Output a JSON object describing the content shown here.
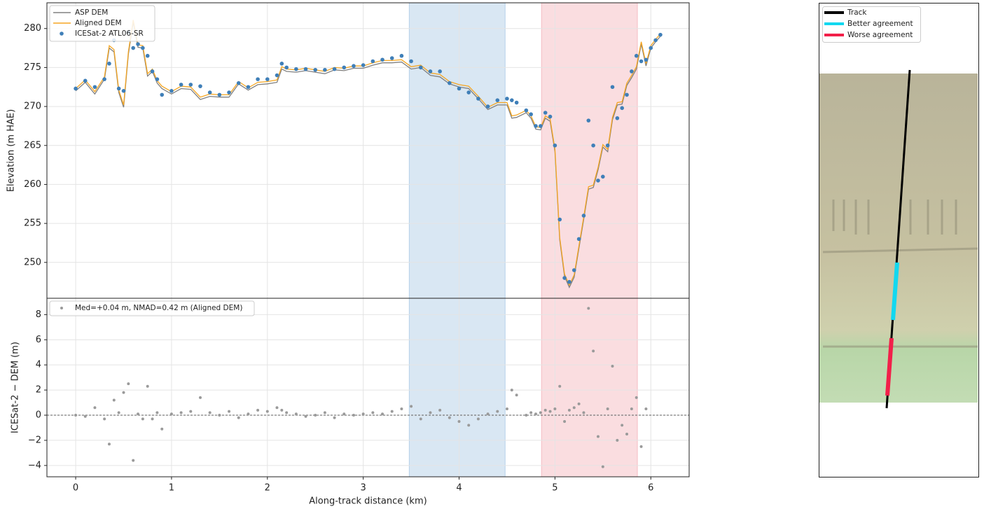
{
  "chart_data": [
    {
      "type": "line",
      "ylabel": "Elevation (m HAE)",
      "x": [
        0,
        0.1,
        0.2,
        0.3,
        0.35,
        0.4,
        0.45,
        0.5,
        0.55,
        0.6,
        0.65,
        0.7,
        0.75,
        0.8,
        0.85,
        0.9,
        1.0,
        1.1,
        1.2,
        1.3,
        1.4,
        1.5,
        1.6,
        1.7,
        1.8,
        1.9,
        2.0,
        2.1,
        2.15,
        2.2,
        2.3,
        2.4,
        2.5,
        2.6,
        2.7,
        2.8,
        2.9,
        3.0,
        3.1,
        3.2,
        3.3,
        3.4,
        3.5,
        3.6,
        3.7,
        3.8,
        3.9,
        4.0,
        4.1,
        4.2,
        4.3,
        4.4,
        4.5,
        4.55,
        4.6,
        4.7,
        4.75,
        4.8,
        4.85,
        4.9,
        4.95,
        5.0,
        5.05,
        5.1,
        5.15,
        5.2,
        5.25,
        5.3,
        5.35,
        5.4,
        5.45,
        5.5,
        5.55,
        5.6,
        5.65,
        5.7,
        5.75,
        5.8,
        5.85,
        5.9,
        5.95,
        6.0,
        6.05,
        6.1
      ],
      "series": [
        {
          "name": "ASP DEM",
          "color": "#808080",
          "mark": "line",
          "values": [
            272.0,
            273.1,
            271.6,
            273.5,
            277.5,
            277.0,
            271.8,
            269.9,
            276.7,
            280.8,
            277.6,
            277.5,
            273.9,
            274.5,
            273.0,
            272.3,
            271.6,
            272.3,
            272.2,
            270.9,
            271.3,
            271.2,
            271.2,
            272.9,
            272.1,
            272.8,
            272.9,
            273.1,
            274.8,
            274.5,
            274.4,
            274.6,
            274.4,
            274.2,
            274.7,
            274.6,
            274.9,
            274.9,
            275.3,
            275.6,
            275.6,
            275.7,
            274.8,
            275.0,
            274.0,
            273.8,
            272.9,
            272.5,
            272.3,
            271.0,
            269.6,
            270.2,
            270.2,
            268.5,
            268.6,
            269.2,
            268.5,
            267.1,
            267.0,
            268.5,
            268.1,
            264.2,
            252.9,
            248.2,
            246.8,
            248.1,
            251.8,
            255.5,
            259.4,
            259.6,
            261.9,
            264.8,
            264.2,
            268.3,
            270.2,
            270.3,
            272.7,
            273.7,
            274.8,
            278.0,
            275.2,
            277.5,
            278.3,
            279.0
          ]
        },
        {
          "name": "Aligned DEM",
          "color": "#f5a623",
          "mark": "line",
          "values": [
            272.3,
            273.4,
            271.9,
            273.8,
            277.8,
            277.3,
            272.1,
            270.2,
            277.0,
            281.1,
            277.9,
            277.8,
            274.2,
            274.8,
            273.3,
            272.6,
            271.9,
            272.6,
            272.5,
            271.2,
            271.6,
            271.5,
            271.5,
            273.2,
            272.4,
            273.1,
            273.2,
            273.4,
            275.1,
            274.8,
            274.7,
            274.9,
            274.7,
            274.5,
            275.0,
            274.9,
            275.2,
            275.2,
            275.6,
            275.9,
            275.9,
            276.0,
            275.1,
            275.3,
            274.3,
            274.1,
            273.2,
            272.8,
            272.6,
            271.3,
            269.9,
            270.5,
            270.5,
            268.8,
            268.9,
            269.5,
            268.8,
            267.4,
            267.3,
            268.8,
            268.4,
            264.5,
            253.2,
            248.5,
            247.1,
            248.4,
            252.1,
            255.8,
            259.7,
            259.9,
            262.2,
            265.1,
            264.5,
            268.6,
            270.5,
            270.6,
            273.0,
            274.0,
            275.1,
            278.3,
            275.5,
            277.8,
            278.6,
            279.3
          ]
        },
        {
          "name": "ICESat-2 ATL06-SR",
          "color": "#3f7fb8",
          "mark": "point",
          "values": [
            272.3,
            273.3,
            272.5,
            273.5,
            275.5,
            278.5,
            272.3,
            272.0,
            279.5,
            277.5,
            278.0,
            277.5,
            276.5,
            274.5,
            273.5,
            271.5,
            272.0,
            272.8,
            272.8,
            272.6,
            271.8,
            271.5,
            271.8,
            273.0,
            272.5,
            273.5,
            273.5,
            274.0,
            275.5,
            275.0,
            274.8,
            274.8,
            274.7,
            274.7,
            274.8,
            275.0,
            275.2,
            275.3,
            275.8,
            276.0,
            276.2,
            276.5,
            275.8,
            275.0,
            274.5,
            274.5,
            273.0,
            272.3,
            271.8,
            271.0,
            270.0,
            270.8,
            271.0,
            270.8,
            270.5,
            269.5,
            269.0,
            267.5,
            267.5,
            269.2,
            268.7,
            265.0,
            255.5,
            248.0,
            247.5,
            249.0,
            253.0,
            256.0,
            268.2,
            265.0,
            260.5,
            261.0,
            265.0,
            272.5,
            268.5,
            269.8,
            271.5,
            274.5,
            276.5,
            275.8,
            276.0,
            277.5,
            278.5,
            279.2
          ]
        }
      ],
      "xlim": [
        -0.3,
        6.4
      ],
      "xticks": [
        0,
        1,
        2,
        3,
        4,
        5,
        6
      ],
      "show_xtick_labels": false,
      "ylim": [
        245.4,
        283.3
      ],
      "yticks": [
        250,
        255,
        260,
        265,
        270,
        275,
        280
      ],
      "spans": [
        {
          "x": [
            3.48,
            4.48
          ],
          "color": "#9fc3e2"
        },
        {
          "x": [
            4.86,
            5.86
          ],
          "color": "#f2aab1"
        }
      ],
      "grid": true,
      "legend": "upper left"
    },
    {
      "type": "scatter",
      "xlabel": "Along-track distance (km)",
      "ylabel": "ICESat-2 − DEM (m)",
      "x": [
        0,
        0.1,
        0.2,
        0.3,
        0.35,
        0.4,
        0.45,
        0.5,
        0.55,
        0.6,
        0.65,
        0.7,
        0.75,
        0.8,
        0.85,
        0.9,
        1.0,
        1.1,
        1.2,
        1.3,
        1.4,
        1.5,
        1.6,
        1.7,
        1.8,
        1.9,
        2.0,
        2.1,
        2.15,
        2.2,
        2.3,
        2.4,
        2.5,
        2.6,
        2.7,
        2.8,
        2.9,
        3.0,
        3.1,
        3.2,
        3.3,
        3.4,
        3.5,
        3.6,
        3.7,
        3.8,
        3.9,
        4.0,
        4.1,
        4.2,
        4.3,
        4.4,
        4.5,
        4.55,
        4.6,
        4.7,
        4.75,
        4.8,
        4.85,
        4.9,
        4.95,
        5.0,
        5.05,
        5.1,
        5.15,
        5.2,
        5.25,
        5.3,
        5.35,
        5.4,
        5.45,
        5.5,
        5.55,
        5.6,
        5.65,
        5.7,
        5.75,
        5.8,
        5.85,
        5.9,
        5.95,
        6.0,
        6.05,
        6.1
      ],
      "series": [
        {
          "name": "Med=+0.04 m, NMAD=0.42 m (Aligned DEM)",
          "color": "#9a9a9a",
          "mark": "point",
          "values": [
            0,
            -0.1,
            0.6,
            -0.3,
            -2.3,
            1.2,
            0.2,
            1.8,
            2.5,
            -3.6,
            0.1,
            -0.3,
            2.3,
            -0.3,
            0.2,
            -1.1,
            0.1,
            0.2,
            0.3,
            1.4,
            0.2,
            0,
            0.3,
            -0.2,
            0.1,
            0.4,
            0.3,
            0.6,
            0.4,
            0.2,
            0.1,
            -0.1,
            0,
            0.2,
            -0.2,
            0.1,
            0,
            0.1,
            0.2,
            0.1,
            0.3,
            0.5,
            0.7,
            -0.3,
            0.2,
            0.4,
            -0.2,
            -0.5,
            -0.8,
            -0.3,
            0.1,
            0.3,
            0.5,
            2.0,
            1.6,
            0,
            0.2,
            0.1,
            0.2,
            0.4,
            0.3,
            0.5,
            2.3,
            -0.5,
            0.4,
            0.6,
            0.9,
            0.2,
            8.5,
            5.1,
            -1.7,
            -4.1,
            0.5,
            3.9,
            -2.0,
            -0.8,
            -1.5,
            0.5,
            1.4,
            -2.5,
            0.5,
            null,
            null,
            null
          ]
        }
      ],
      "xlim": [
        -0.3,
        6.4
      ],
      "xticks": [
        0,
        1,
        2,
        3,
        4,
        5,
        6
      ],
      "show_xtick_labels": true,
      "ylim": [
        -4.9,
        9.3
      ],
      "yticks": [
        {
          "value": -4,
          "label": "−4"
        },
        {
          "value": -2,
          "label": "−2"
        },
        0,
        2,
        4,
        6,
        8
      ],
      "hline": 0,
      "spans": [
        {
          "x": [
            3.48,
            4.48
          ],
          "color": "#9fc3e2"
        },
        {
          "x": [
            4.86,
            5.86
          ],
          "color": "#f2aab1"
        }
      ],
      "grid": true,
      "legend": "upper left"
    }
  ],
  "map": {
    "legend": [
      {
        "label": "Track",
        "color": "#000000"
      },
      {
        "label": "Better agreement",
        "color": "#12d8f0"
      },
      {
        "label": "Worse agreement",
        "color": "#f2204a"
      }
    ]
  }
}
